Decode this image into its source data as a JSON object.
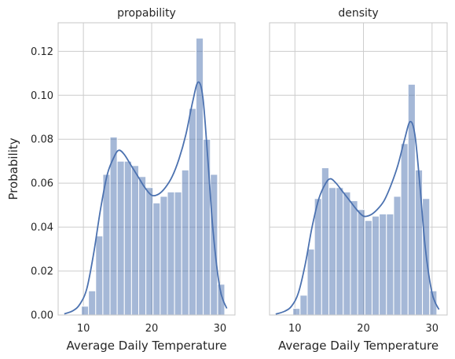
{
  "chart_data": [
    {
      "type": "histogram",
      "title": "propability",
      "xlabel": "Average Daily Temperature",
      "ylabel": "Probability",
      "xlim": [
        6.3,
        32.2
      ],
      "ylim": [
        0,
        0.133
      ],
      "xticks": [
        10,
        20,
        30
      ],
      "yticks": [
        0.0,
        0.02,
        0.04,
        0.06,
        0.08,
        0.1,
        0.12
      ],
      "ytick_labels": [
        "0.00",
        "0.02",
        "0.04",
        "0.06",
        "0.08",
        "0.10",
        "0.12"
      ],
      "grid": true,
      "bins": {
        "left_edges": [
          9.7,
          10.75,
          11.8,
          12.85,
          13.9,
          14.95,
          16.0,
          17.05,
          18.1,
          19.15,
          20.2,
          21.25,
          22.3,
          23.35,
          24.4,
          25.45,
          26.5,
          27.55,
          28.6,
          29.65
        ],
        "width": 1.05,
        "values": [
          0.004,
          0.011,
          0.036,
          0.064,
          0.081,
          0.07,
          0.07,
          0.068,
          0.063,
          0.058,
          0.051,
          0.054,
          0.056,
          0.056,
          0.066,
          0.094,
          0.126,
          0.08,
          0.064,
          0.014
        ]
      },
      "kde": {
        "x": [
          7.2,
          8.5,
          9.5,
          10.5,
          11.5,
          12.5,
          13.5,
          14.5,
          15.2,
          16.0,
          17.0,
          18.0,
          19.0,
          20.0,
          21.0,
          22.0,
          23.0,
          24.0,
          25.0,
          26.0,
          26.8,
          27.5,
          28.2,
          29.0,
          30.0,
          31.0
        ],
        "y": [
          0.0005,
          0.002,
          0.005,
          0.012,
          0.028,
          0.048,
          0.064,
          0.072,
          0.075,
          0.073,
          0.068,
          0.063,
          0.058,
          0.0545,
          0.055,
          0.058,
          0.063,
          0.071,
          0.082,
          0.097,
          0.106,
          0.099,
          0.072,
          0.038,
          0.012,
          0.003
        ]
      }
    },
    {
      "type": "histogram",
      "title": "density",
      "xlabel": "Average Daily Temperature",
      "ylabel": "",
      "xlim": [
        6.3,
        32.2
      ],
      "ylim": [
        0,
        0.133
      ],
      "xticks": [
        10,
        20,
        30
      ],
      "grid": true,
      "shares_y_axis": true,
      "bins": {
        "left_edges": [
          9.7,
          10.75,
          11.8,
          12.85,
          13.9,
          14.95,
          16.0,
          17.05,
          18.1,
          19.15,
          20.2,
          21.25,
          22.3,
          23.35,
          24.4,
          25.45,
          26.5,
          27.55,
          28.6,
          29.65
        ],
        "width": 1.05,
        "values": [
          0.003,
          0.009,
          0.03,
          0.053,
          0.067,
          0.058,
          0.058,
          0.056,
          0.052,
          0.048,
          0.043,
          0.045,
          0.046,
          0.046,
          0.054,
          0.078,
          0.105,
          0.066,
          0.053,
          0.011
        ]
      },
      "kde": {
        "x": [
          7.2,
          8.5,
          9.5,
          10.5,
          11.5,
          12.5,
          13.5,
          14.5,
          15.2,
          16.0,
          17.0,
          18.0,
          19.0,
          20.0,
          21.0,
          22.0,
          23.0,
          24.0,
          25.0,
          26.0,
          26.8,
          27.5,
          28.2,
          29.0,
          30.0,
          31.0
        ],
        "y": [
          0.0004,
          0.0017,
          0.004,
          0.01,
          0.023,
          0.04,
          0.053,
          0.06,
          0.062,
          0.06,
          0.056,
          0.052,
          0.048,
          0.045,
          0.0455,
          0.048,
          0.052,
          0.059,
          0.068,
          0.08,
          0.088,
          0.082,
          0.06,
          0.031,
          0.01,
          0.0025
        ]
      }
    }
  ],
  "colors": {
    "bar_fill": "#4c72b0",
    "bar_opacity": 0.5,
    "bar_edge": "#ffffff",
    "kde_line": "#4c72b0",
    "grid": "#cccccc",
    "frame": "#cccccc",
    "text": "#262626"
  }
}
